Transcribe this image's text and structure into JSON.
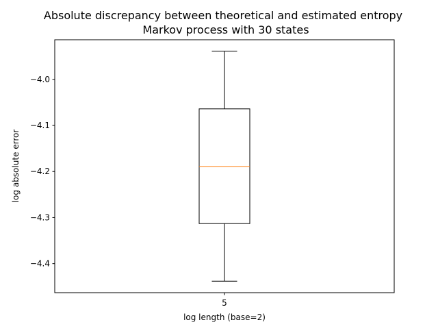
{
  "chart_data": {
    "type": "box",
    "title": "Absolute discrepancy between theoretical and estimated entropy",
    "subtitle": "Markov process with 30 states",
    "xlabel": "log length (base=2)",
    "ylabel": "log absolute error",
    "categories": [
      "5"
    ],
    "ylim": [
      -4.463,
      -3.914
    ],
    "yticks": [
      -4.0,
      -4.1,
      -4.2,
      -4.3,
      -4.4
    ],
    "ytick_labels": [
      "−4.0",
      "−4.1",
      "−4.2",
      "−4.3",
      "−4.4"
    ],
    "boxes": [
      {
        "category": "5",
        "whisker_low": -4.438,
        "q1": -4.313,
        "median": -4.189,
        "q3": -4.064,
        "whisker_high": -3.939
      }
    ],
    "grid": false,
    "colors": {
      "box": "#000000",
      "median": "#ff7f0e",
      "axes": "#000000"
    }
  }
}
